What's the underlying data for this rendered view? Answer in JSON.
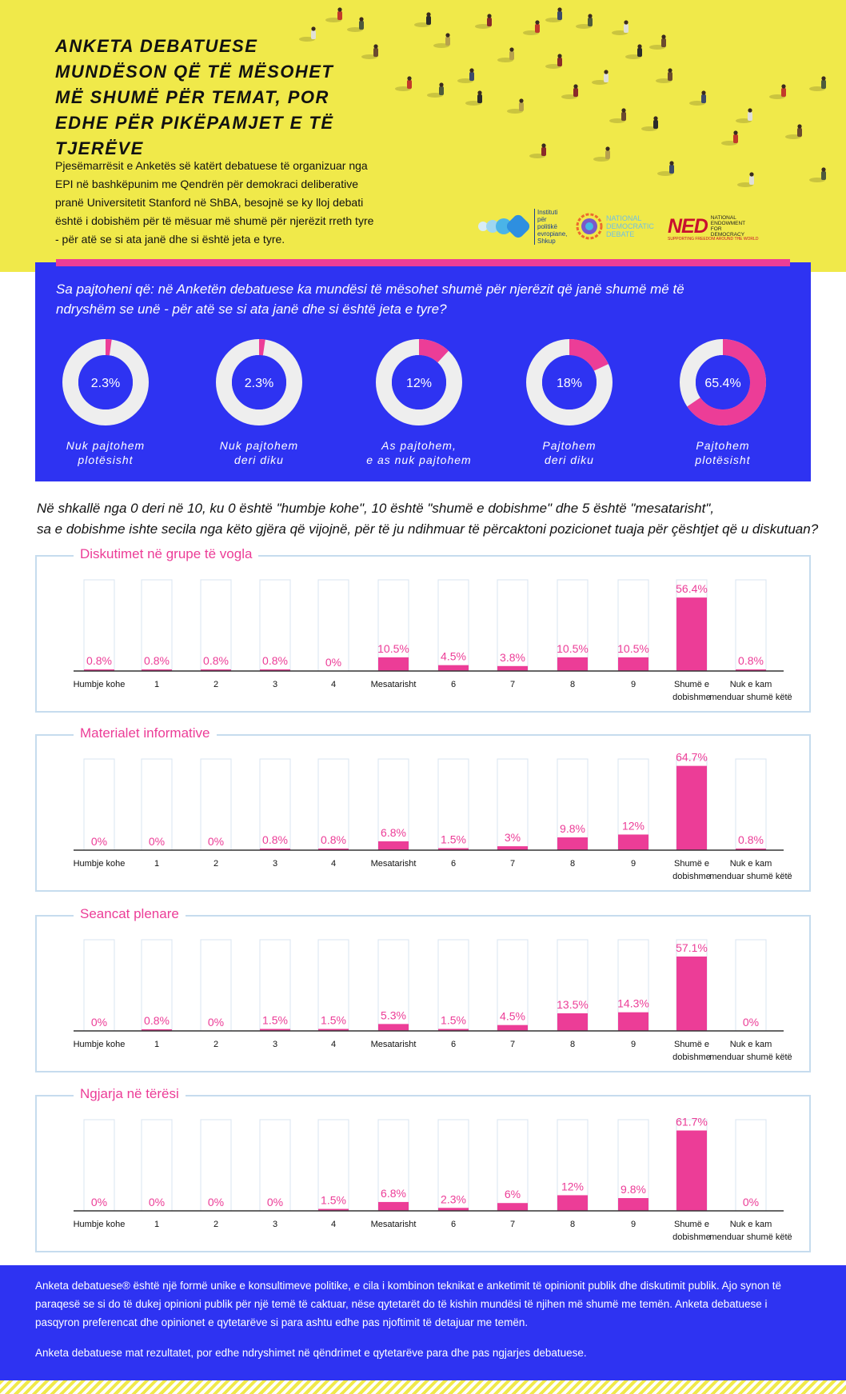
{
  "header": {
    "title_lines": [
      "ANKETA DEBATUESE",
      "MUNDËSON QË TË MËSOHET",
      "MË SHUMË PËR TEMAT, POR",
      "EDHE PËR PIKËPAMJET E TË TJERËVE"
    ],
    "intro": "Pjesëmarrësit e Anketës së katërt debatuese të organizuar nga EPI në bashkëpunim me Qendrën për demokraci deliberative pranë Universitetit Stanford në ShBA, besojnë se ky lloj debati është i dobishëm për të mësuar më shumë për njerëzit rreth tyre - për atë se si ata janë dhe si është jeta e tyre.",
    "logos": {
      "epi": "Instituti për politikë evropiane, Shkup",
      "ndd": "NATIONAL DEMOCRATIC DEBATE",
      "ned_mark": "NED",
      "ned_text": "NATIONAL ENDOWMENT FOR DEMOCRACY",
      "ned_tagline": "SUPPORTING FREEDOM AROUND THE WORLD"
    }
  },
  "colors": {
    "blue": "#2e33f2",
    "pink": "#ec3d97",
    "yellow": "#f0e94a",
    "donut_bg": "#eeeeee",
    "axis": "#333333"
  },
  "question1": "Sa pajtoheni që: në Anketën debatuese ka mundësi të mësohet shumë për njerëzit që janë shumë më të ndryshëm se unë - për atë se si ata janë dhe si është jeta e tyre?",
  "question2_lines": [
    "Në shkallë nga 0 deri në 10, ku 0 është \"humbje kohe\", 10 është \"shumë e dobishme\" dhe 5 është \"mesatarisht\",",
    "sa e dobishme ishte secila nga këto gjëra që vijojnë, për të ju ndihmuar të përcaktoni pozicionet tuaja për çështjet që u diskutuan?"
  ],
  "chart_data": [
    {
      "type": "pie",
      "title": "",
      "donut": true,
      "categories": [
        "Nuk pajtohem plotësisht",
        "Nuk pajtohem deri diku",
        "As pajtohem, e as nuk pajtohem",
        "Pajtohem deri diku",
        "Pajtohem plotësisht"
      ],
      "label_lines": [
        [
          "Nuk pajtohem",
          "plotësisht"
        ],
        [
          "Nuk pajtohem",
          "deri diku"
        ],
        [
          "As pajtohem,",
          "e as nuk pajtohem"
        ],
        [
          "Pajtohem",
          "deri diku"
        ],
        [
          "Pajtohem",
          "plotësisht"
        ]
      ],
      "values": [
        2.3,
        2.3,
        12,
        18,
        65.4
      ],
      "value_labels": [
        "2.3%",
        "2.3%",
        "12%",
        "18%",
        "65.4%"
      ]
    },
    {
      "type": "bar",
      "title": "Diskutimet në grupe të vogla",
      "categories": [
        "Humbje kohe",
        "1",
        "2",
        "3",
        "4",
        "Mesatarisht",
        "6",
        "7",
        "8",
        "9",
        "Shumë e dobishme",
        "Nuk e kam menduar shumë këtë"
      ],
      "category_lines": [
        [
          "Humbje kohe"
        ],
        [
          "1"
        ],
        [
          "2"
        ],
        [
          "3"
        ],
        [
          "4"
        ],
        [
          "Mesatarisht"
        ],
        [
          "6"
        ],
        [
          "7"
        ],
        [
          "8"
        ],
        [
          "9"
        ],
        [
          "Shumë e",
          "dobishme"
        ],
        [
          "Nuk e kam",
          "menduar shumë këtë"
        ]
      ],
      "values": [
        0.8,
        0.8,
        0.8,
        0.8,
        0,
        10.5,
        4.5,
        3.8,
        10.5,
        10.5,
        56.4,
        0.8
      ],
      "value_labels": [
        "0.8%",
        "0.8%",
        "0.8%",
        "0.8%",
        "0%",
        "10.5%",
        "4.5%",
        "3.8%",
        "10.5%",
        "10.5%",
        "56.4%",
        "0.8%"
      ]
    },
    {
      "type": "bar",
      "title": "Materialet informative",
      "categories": [
        "Humbje kohe",
        "1",
        "2",
        "3",
        "4",
        "Mesatarisht",
        "6",
        "7",
        "8",
        "9",
        "Shumë e dobishme",
        "Nuk e kam menduar shumë këtë"
      ],
      "category_lines": [
        [
          "Humbje kohe"
        ],
        [
          "1"
        ],
        [
          "2"
        ],
        [
          "3"
        ],
        [
          "4"
        ],
        [
          "Mesatarisht"
        ],
        [
          "6"
        ],
        [
          "7"
        ],
        [
          "8"
        ],
        [
          "9"
        ],
        [
          "Shumë e",
          "dobishme"
        ],
        [
          "Nuk e kam",
          "menduar shumë këtë"
        ]
      ],
      "values": [
        0,
        0,
        0,
        0.8,
        0.8,
        6.8,
        1.5,
        3,
        9.8,
        12,
        64.7,
        0.8
      ],
      "value_labels": [
        "0%",
        "0%",
        "0%",
        "0.8%",
        "0.8%",
        "6.8%",
        "1.5%",
        "3%",
        "9.8%",
        "12%",
        "64.7%",
        "0.8%"
      ]
    },
    {
      "type": "bar",
      "title": "Seancat plenare",
      "categories": [
        "Humbje kohe",
        "1",
        "2",
        "3",
        "4",
        "Mesatarisht",
        "6",
        "7",
        "8",
        "9",
        "Shumë e dobishme",
        "Nuk e kam menduar shumë këtë"
      ],
      "category_lines": [
        [
          "Humbje kohe"
        ],
        [
          "1"
        ],
        [
          "2"
        ],
        [
          "3"
        ],
        [
          "4"
        ],
        [
          "Mesatarisht"
        ],
        [
          "6"
        ],
        [
          "7"
        ],
        [
          "8"
        ],
        [
          "9"
        ],
        [
          "Shumë e",
          "dobishme"
        ],
        [
          "Nuk e kam",
          "menduar shumë këtë"
        ]
      ],
      "values": [
        0,
        0.8,
        0,
        1.5,
        1.5,
        5.3,
        1.5,
        4.5,
        13.5,
        14.3,
        57.1,
        0
      ],
      "value_labels": [
        "0%",
        "0.8%",
        "0%",
        "1.5%",
        "1.5%",
        "5.3%",
        "1.5%",
        "4.5%",
        "13.5%",
        "14.3%",
        "57.1%",
        "0%"
      ]
    },
    {
      "type": "bar",
      "title": "Ngjarja në tërësi",
      "categories": [
        "Humbje kohe",
        "1",
        "2",
        "3",
        "4",
        "Mesatarisht",
        "6",
        "7",
        "8",
        "9",
        "Shumë e dobishme",
        "Nuk e kam menduar shumë këtë"
      ],
      "category_lines": [
        [
          "Humbje kohe"
        ],
        [
          "1"
        ],
        [
          "2"
        ],
        [
          "3"
        ],
        [
          "4"
        ],
        [
          "Mesatarisht"
        ],
        [
          "6"
        ],
        [
          "7"
        ],
        [
          "8"
        ],
        [
          "9"
        ],
        [
          "Shumë e",
          "dobishme"
        ],
        [
          "Nuk e kam",
          "menduar shumë këtë"
        ]
      ],
      "values": [
        0,
        0,
        0,
        0,
        1.5,
        6.8,
        2.3,
        6,
        12,
        9.8,
        61.7,
        0
      ],
      "value_labels": [
        "0%",
        "0%",
        "0%",
        "0%",
        "1.5%",
        "6.8%",
        "2.3%",
        "6%",
        "12%",
        "9.8%",
        "61.7%",
        "0%"
      ]
    }
  ],
  "footer": {
    "paragraph1": "Anketa debatuese® është një formë unike e konsultimeve politike, e cila i kombinon teknikat e anketimit të opinionit publik dhe diskutimit publik. Ajo synon të paraqesë se si do të dukej opinioni publik për një temë të caktuar, nëse qytetarët do të kishin mundësi të njihen më shumë me temën. Anketa debatuese i pasqyron preferencat dhe opinionet e qytetarëve si para ashtu edhe pas njoftimit të detajuar me temën.",
    "paragraph2": "Anketa debatuese mat rezultatet, por edhe ndryshimet në qëndrimet e qytetarëve para dhe pas ngjarjes debatuese."
  }
}
